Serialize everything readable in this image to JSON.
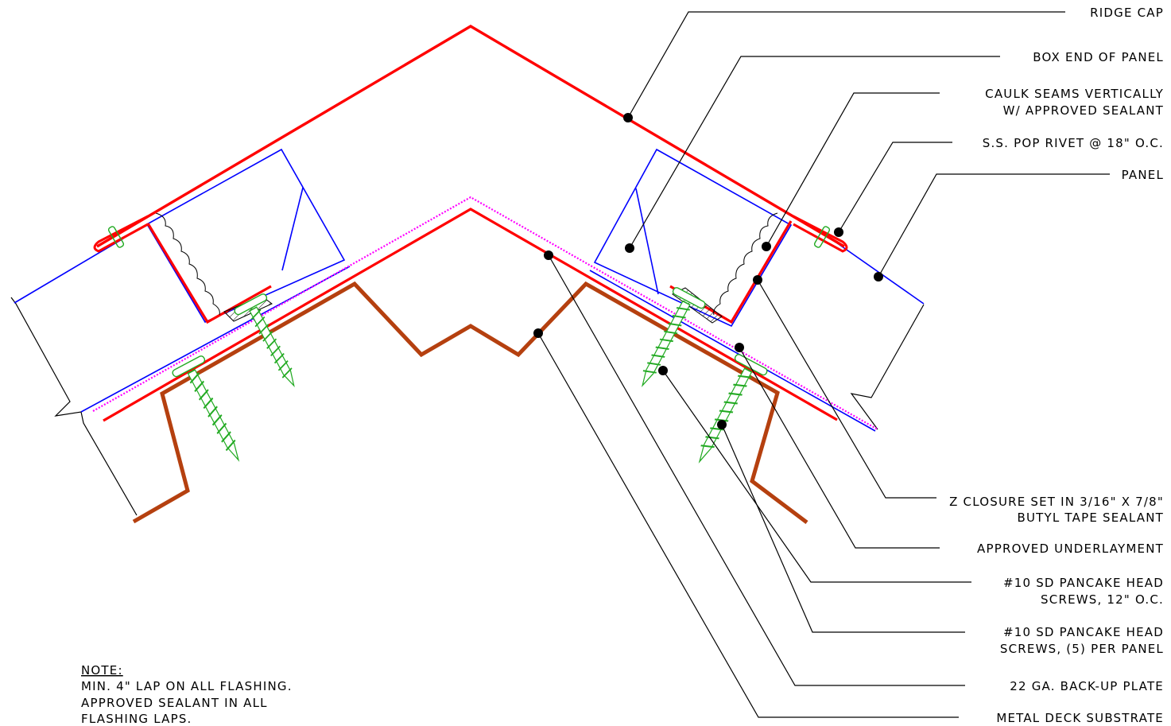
{
  "labels": {
    "ridge_cap": "RIDGE CAP",
    "box_end": "BOX END OF PANEL",
    "caulk_line1": "CAULK SEAMS VERTICALLY",
    "caulk_line2": "W/ APPROVED SEALANT",
    "pop_rivet": "S.S. POP RIVET @ 18\" O.C.",
    "panel": "PANEL",
    "z_closure_line1": "Z CLOSURE SET IN 3/16\" X 7/8\"",
    "z_closure_line2": "BUTYL TAPE SEALANT",
    "underlayment": "APPROVED UNDERLAYMENT",
    "screws12_line1": "#10 SD PANCAKE HEAD",
    "screws12_line2": "SCREWS, 12\" O.C.",
    "screws5_line1": "#10 SD PANCAKE HEAD",
    "screws5_line2": "SCREWS, (5) PER PANEL",
    "backup_plate": "22 GA. BACK-UP PLATE",
    "metal_deck": "METAL DECK SUBSTRATE"
  },
  "note": {
    "heading": "NOTE:",
    "line1": "MIN. 4\" LAP ON ALL FLASHING.",
    "line2": "APPROVED SEALANT IN ALL",
    "line3": "FLASHING LAPS."
  },
  "colors": {
    "ridge_cap": "#ff0000",
    "panel": "#0000ff",
    "underlayment": "#ff00ff",
    "backup_plate": "#b5400f",
    "screws": "#22aa22",
    "leaders": "#000000"
  }
}
